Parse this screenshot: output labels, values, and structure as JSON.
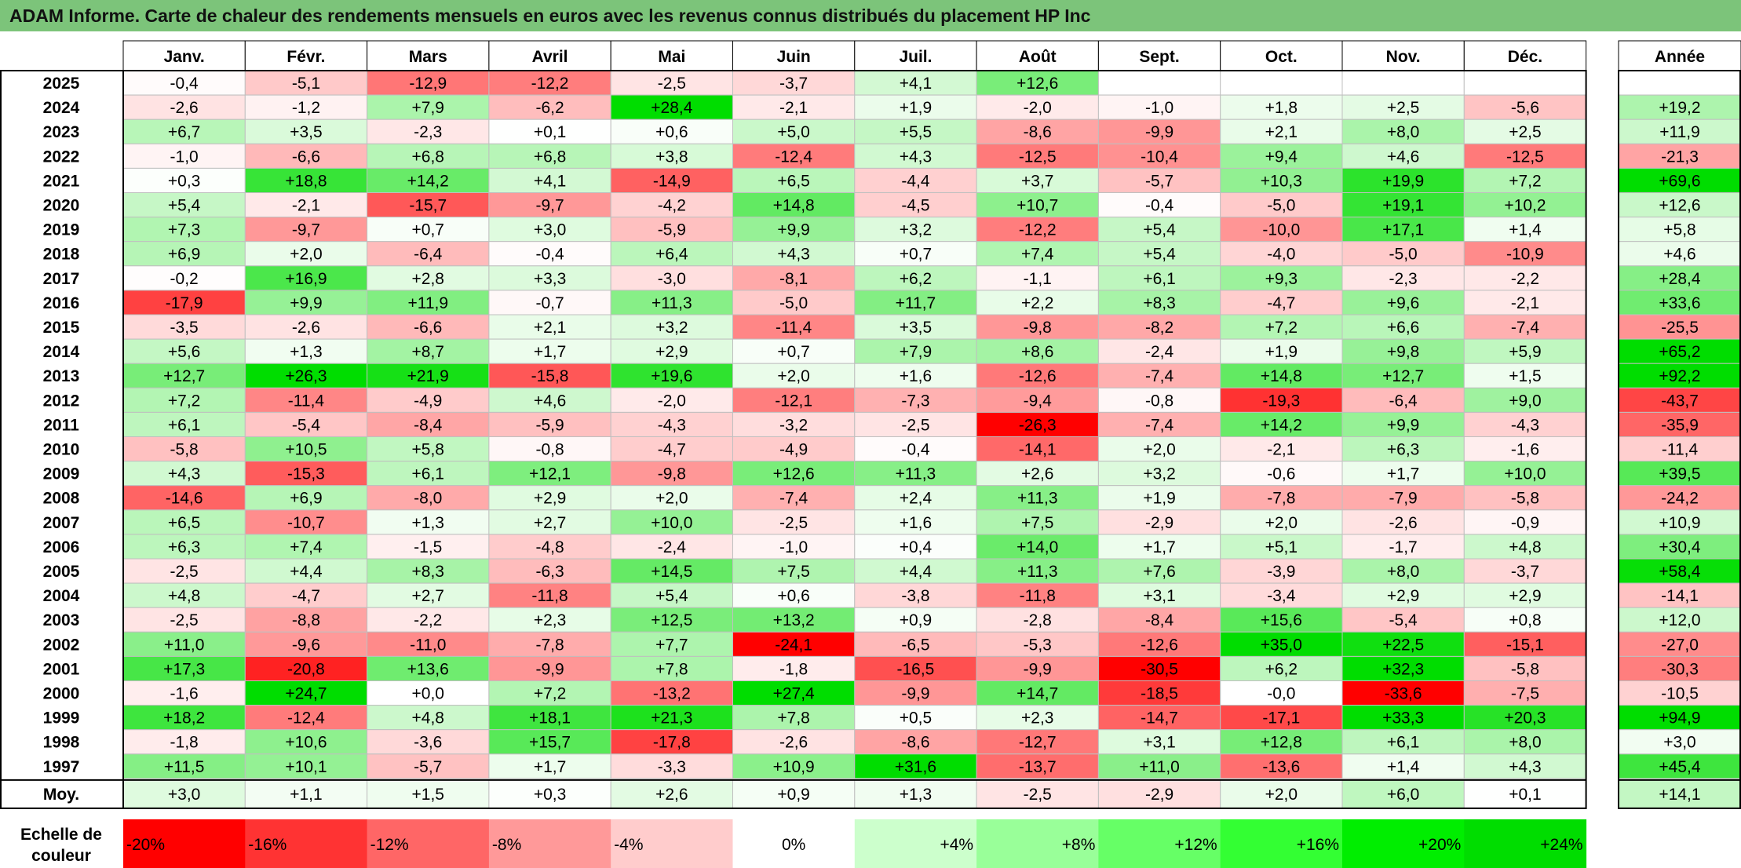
{
  "title": "ADAM Informe. Carte de chaleur des rendements mensuels en euros avec les revenus connus distribués du placement HP Inc",
  "chart_data": {
    "type": "heatmap",
    "title": "ADAM Informe. Carte de chaleur des rendements mensuels en euros avec les revenus connus distribués du placement HP Inc",
    "months": [
      "Janv.",
      "Févr.",
      "Mars",
      "Avril",
      "Mai",
      "Juin",
      "Juil.",
      "Août",
      "Sept.",
      "Oct.",
      "Nov.",
      "Déc."
    ],
    "year_header": "Année",
    "rows": [
      {
        "year": "2025",
        "values": [
          -0.4,
          -5.1,
          -12.9,
          -12.2,
          -2.5,
          -3.7,
          4.1,
          12.6,
          null,
          null,
          null,
          null
        ],
        "annual": null
      },
      {
        "year": "2024",
        "values": [
          -2.6,
          -1.2,
          7.9,
          -6.2,
          28.4,
          -2.1,
          1.9,
          -2.0,
          -1.0,
          1.8,
          2.5,
          -5.6
        ],
        "annual": 19.2
      },
      {
        "year": "2023",
        "values": [
          6.7,
          3.5,
          -2.3,
          0.1,
          0.6,
          5.0,
          5.5,
          -8.6,
          -9.9,
          2.1,
          8.0,
          2.5
        ],
        "annual": 11.9
      },
      {
        "year": "2022",
        "values": [
          -1.0,
          -6.6,
          6.8,
          6.8,
          3.8,
          -12.4,
          4.3,
          -12.5,
          -10.4,
          9.4,
          4.6,
          -12.5
        ],
        "annual": -21.3
      },
      {
        "year": "2021",
        "values": [
          0.3,
          18.8,
          14.2,
          4.1,
          -14.9,
          6.5,
          -4.4,
          3.7,
          -5.7,
          10.3,
          19.9,
          7.2
        ],
        "annual": 69.6
      },
      {
        "year": "2020",
        "values": [
          5.4,
          -2.1,
          -15.7,
          -9.7,
          -4.2,
          14.8,
          -4.5,
          10.7,
          -0.4,
          -5.0,
          19.1,
          10.2
        ],
        "annual": 12.6
      },
      {
        "year": "2019",
        "values": [
          7.3,
          -9.7,
          0.7,
          3.0,
          -5.9,
          9.9,
          3.2,
          -12.2,
          5.4,
          -10.0,
          17.1,
          1.4
        ],
        "annual": 5.8
      },
      {
        "year": "2018",
        "values": [
          6.9,
          2.0,
          -6.4,
          -0.4,
          6.4,
          4.3,
          0.7,
          7.4,
          5.4,
          -4.0,
          -5.0,
          -10.9
        ],
        "annual": 4.6
      },
      {
        "year": "2017",
        "values": [
          -0.2,
          16.9,
          2.8,
          3.3,
          -3.0,
          -8.1,
          6.2,
          -1.1,
          6.1,
          9.3,
          -2.3,
          -2.2
        ],
        "annual": 28.4
      },
      {
        "year": "2016",
        "values": [
          -17.9,
          9.9,
          11.9,
          -0.7,
          11.3,
          -5.0,
          11.7,
          2.2,
          8.3,
          -4.7,
          9.6,
          -2.1
        ],
        "annual": 33.6
      },
      {
        "year": "2015",
        "values": [
          -3.5,
          -2.6,
          -6.6,
          2.1,
          3.2,
          -11.4,
          3.5,
          -9.8,
          -8.2,
          7.2,
          6.6,
          -7.4
        ],
        "annual": -25.5
      },
      {
        "year": "2014",
        "values": [
          5.6,
          1.3,
          8.7,
          1.7,
          2.9,
          0.7,
          7.9,
          8.6,
          -2.4,
          1.9,
          9.8,
          5.9
        ],
        "annual": 65.2
      },
      {
        "year": "2013",
        "values": [
          12.7,
          26.3,
          21.9,
          -15.8,
          19.6,
          2.0,
          1.6,
          -12.6,
          -7.4,
          14.8,
          12.7,
          1.5
        ],
        "annual": 92.2
      },
      {
        "year": "2012",
        "values": [
          7.2,
          -11.4,
          -4.9,
          4.6,
          -2.0,
          -12.1,
          -7.3,
          -9.4,
          -0.8,
          -19.3,
          -6.4,
          9.0
        ],
        "annual": -43.7
      },
      {
        "year": "2011",
        "values": [
          6.1,
          -5.4,
          -8.4,
          -5.9,
          -4.3,
          -3.2,
          -2.5,
          -26.3,
          -7.4,
          14.2,
          9.9,
          -4.3
        ],
        "annual": -35.9
      },
      {
        "year": "2010",
        "values": [
          -5.8,
          10.5,
          5.8,
          -0.8,
          -4.7,
          -4.9,
          -0.4,
          -14.1,
          2.0,
          -2.1,
          6.3,
          -1.6
        ],
        "annual": -11.4
      },
      {
        "year": "2009",
        "values": [
          4.3,
          -15.3,
          6.1,
          12.1,
          -9.8,
          12.6,
          11.3,
          2.6,
          3.2,
          -0.6,
          1.7,
          10.0
        ],
        "annual": 39.5
      },
      {
        "year": "2008",
        "values": [
          -14.6,
          6.9,
          -8.0,
          2.9,
          2.0,
          -7.4,
          2.4,
          11.3,
          1.9,
          -7.8,
          -7.9,
          -5.8
        ],
        "annual": -24.2
      },
      {
        "year": "2007",
        "values": [
          6.5,
          -10.7,
          1.3,
          2.7,
          10.0,
          -2.5,
          1.6,
          7.5,
          -2.9,
          2.0,
          -2.6,
          -0.9
        ],
        "annual": 10.9
      },
      {
        "year": "2006",
        "values": [
          6.3,
          7.4,
          -1.5,
          -4.8,
          -2.4,
          -1.0,
          0.4,
          14.0,
          1.7,
          5.1,
          -1.7,
          4.8
        ],
        "annual": 30.4
      },
      {
        "year": "2005",
        "values": [
          -2.5,
          4.4,
          8.3,
          -6.3,
          14.5,
          7.5,
          4.4,
          11.3,
          7.6,
          -3.9,
          8.0,
          -3.7
        ],
        "annual": 58.4
      },
      {
        "year": "2004",
        "values": [
          4.8,
          -4.7,
          2.7,
          -11.8,
          5.4,
          0.6,
          -3.8,
          -11.8,
          3.1,
          -3.4,
          2.9,
          2.9
        ],
        "annual": -14.1
      },
      {
        "year": "2003",
        "values": [
          -2.5,
          -8.8,
          -2.2,
          2.3,
          12.5,
          13.2,
          0.9,
          -2.8,
          -8.4,
          15.6,
          -5.4,
          0.8
        ],
        "annual": 12.0
      },
      {
        "year": "2002",
        "values": [
          11.0,
          -9.6,
          -11.0,
          -7.8,
          7.7,
          -24.1,
          -6.5,
          -5.3,
          -12.6,
          35.0,
          22.5,
          -15.1
        ],
        "annual": -27.0
      },
      {
        "year": "2001",
        "values": [
          17.3,
          -20.8,
          13.6,
          -9.9,
          7.8,
          -1.8,
          -16.5,
          -9.9,
          -30.5,
          6.2,
          32.3,
          -5.8
        ],
        "annual": -30.3
      },
      {
        "year": "2000",
        "values": [
          -1.6,
          24.7,
          0.0,
          7.2,
          -13.2,
          27.4,
          -9.9,
          14.7,
          -18.5,
          -0.0,
          -33.6,
          -7.5
        ],
        "annual": -10.5
      },
      {
        "year": "1999",
        "values": [
          18.2,
          -12.4,
          4.8,
          18.1,
          21.3,
          7.8,
          0.5,
          2.3,
          -14.7,
          -17.1,
          33.3,
          20.3
        ],
        "annual": 94.9
      },
      {
        "year": "1998",
        "values": [
          -1.8,
          10.6,
          -3.6,
          15.7,
          -17.8,
          -2.6,
          -8.6,
          -12.7,
          3.1,
          12.8,
          6.1,
          8.0
        ],
        "annual": 3.0
      },
      {
        "year": "1997",
        "values": [
          11.5,
          10.1,
          -5.7,
          1.7,
          -3.3,
          10.9,
          31.6,
          -13.7,
          11.0,
          -13.6,
          1.4,
          4.3
        ],
        "annual": 45.4
      }
    ],
    "average": {
      "label": "Moy.",
      "values": [
        3.0,
        1.1,
        1.5,
        0.3,
        2.6,
        0.9,
        1.3,
        -2.5,
        -2.9,
        2.0,
        6.0,
        0.1
      ],
      "annual": 14.1
    },
    "scale": {
      "label": "Echelle de couleur",
      "steps": [
        {
          "label": "-20%",
          "value": -20,
          "color": "#ff0000"
        },
        {
          "label": "-16%",
          "value": -16,
          "color": "#ff3333"
        },
        {
          "label": "-12%",
          "value": -12,
          "color": "#ff6666"
        },
        {
          "label": "-8%",
          "value": -8,
          "color": "#ff9999"
        },
        {
          "label": "-4%",
          "value": -4,
          "color": "#ffcccc"
        },
        {
          "label": "0%",
          "value": 0,
          "color": "#ffffff"
        },
        {
          "label": "+4%",
          "value": 4,
          "color": "#ccffcc"
        },
        {
          "label": "+8%",
          "value": 8,
          "color": "#99ff99"
        },
        {
          "label": "+12%",
          "value": 12,
          "color": "#66ff66"
        },
        {
          "label": "+16%",
          "value": 16,
          "color": "#33ff33"
        },
        {
          "label": "+20%",
          "value": 20,
          "color": "#00ee00"
        },
        {
          "label": "+24%",
          "value": 24,
          "color": "#00dd00"
        }
      ]
    },
    "colors": {
      "title_bar": "#7cc47a",
      "negative_max": "#ff0000",
      "neutral": "#ffffff",
      "positive_max": "#00dd00",
      "grid": "#bfbfbf",
      "border": "#000000"
    }
  }
}
